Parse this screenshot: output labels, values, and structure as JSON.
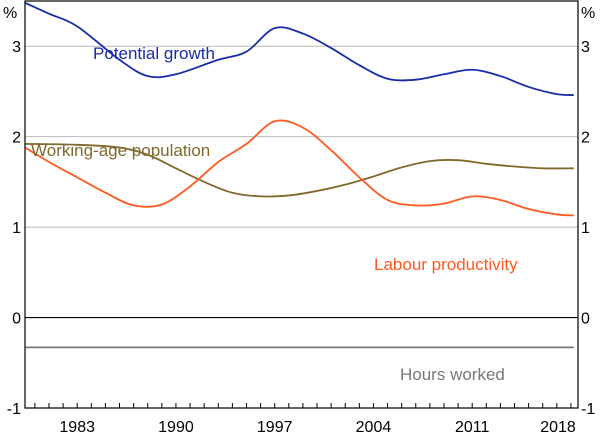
{
  "chart_data": {
    "type": "line",
    "title": "",
    "ylabel_left": "%",
    "ylabel_right": "%",
    "xlim": [
      1979.3,
      2018.5
    ],
    "ylim": [
      -1,
      3.5
    ],
    "yticks": [
      -1,
      0,
      1,
      2,
      3
    ],
    "ytick_labels": [
      "-1",
      "0",
      "1",
      "2",
      "3"
    ],
    "xtick_labels": [
      "1983",
      "1990",
      "1997",
      "2004",
      "2011",
      "2018"
    ],
    "xtick_values": [
      1983,
      1990,
      1997,
      2004,
      2011,
      2018
    ],
    "grid": true,
    "series": [
      {
        "name": "Potential growth",
        "color": "#1a2aa8",
        "x": [
          1979.3,
          1981,
          1983,
          1986,
          1988,
          1990,
          1993,
          1995,
          1997,
          1999,
          2001,
          2003,
          2005,
          2007,
          2009,
          2011,
          2013,
          2015,
          2017,
          2018.2
        ],
        "y": [
          3.48,
          3.36,
          3.22,
          2.85,
          2.67,
          2.69,
          2.85,
          2.94,
          3.2,
          3.14,
          2.98,
          2.79,
          2.64,
          2.63,
          2.69,
          2.74,
          2.67,
          2.55,
          2.47,
          2.46
        ]
      },
      {
        "name": "Working-age population",
        "color": "#7f6a2c",
        "x": [
          1979.3,
          1983,
          1986,
          1988,
          1990,
          1992,
          1994,
          1996,
          1998,
          2000,
          2002,
          2004,
          2006,
          2008,
          2010,
          2012,
          2014,
          2016,
          2018.2
        ],
        "y": [
          1.92,
          1.91,
          1.88,
          1.8,
          1.65,
          1.5,
          1.38,
          1.34,
          1.35,
          1.4,
          1.47,
          1.56,
          1.66,
          1.73,
          1.74,
          1.7,
          1.67,
          1.65,
          1.65
        ]
      },
      {
        "name": "Labour productivity",
        "color": "#ff5a1f",
        "x": [
          1979.3,
          1981,
          1983,
          1985,
          1987,
          1989,
          1991,
          1993,
          1995,
          1997,
          1999,
          2001,
          2003,
          2005,
          2007,
          2009,
          2011,
          2013,
          2015,
          2017,
          2018.2
        ],
        "y": [
          1.88,
          1.72,
          1.55,
          1.38,
          1.24,
          1.25,
          1.45,
          1.72,
          1.92,
          2.17,
          2.1,
          1.85,
          1.55,
          1.3,
          1.24,
          1.26,
          1.34,
          1.3,
          1.2,
          1.14,
          1.13
        ]
      },
      {
        "name": "Hours worked",
        "color": "#777777",
        "x": [
          1979.3,
          2018.2
        ],
        "y": [
          -0.33,
          -0.33
        ]
      }
    ]
  }
}
